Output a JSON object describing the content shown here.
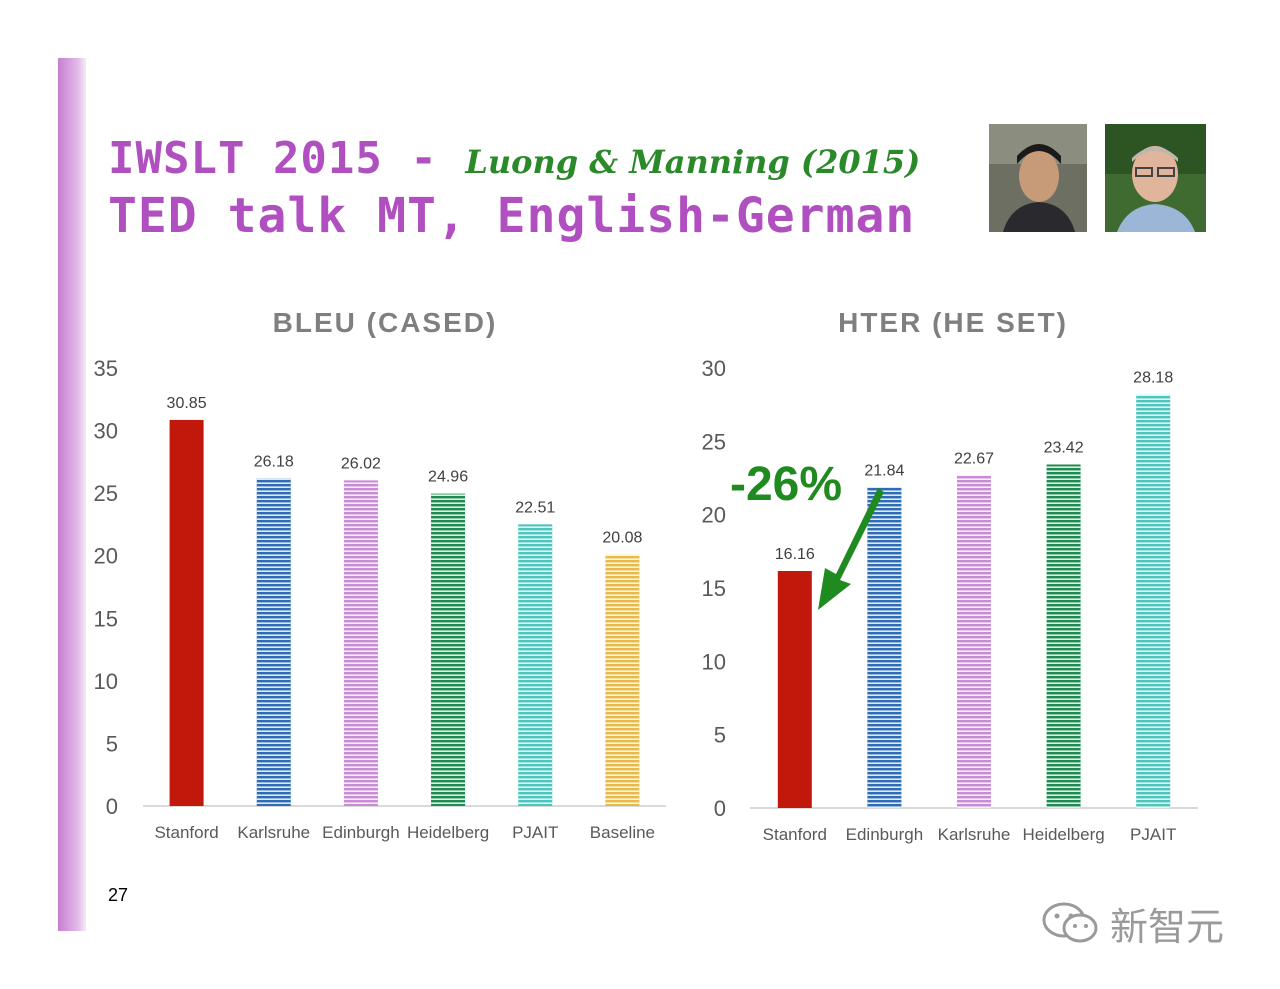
{
  "slide": {
    "title_line1": "IWSLT 2015 - ",
    "title_authors": "Luong & Manning (2015)",
    "title_line2": "TED talk MT, English-German",
    "page_number": "27",
    "watermark": "新智元",
    "annotation": {
      "text": "-26%",
      "color": "#1f8a1f"
    },
    "colors": {
      "title": "#b04fbf",
      "authors": "#2a8a2a",
      "accent_bar": "#c77fd0"
    }
  },
  "chart_data": [
    {
      "type": "bar",
      "title": "BLEU (CASED)",
      "categories": [
        "Stanford",
        "Karlsruhe",
        "Edinburgh",
        "Heidelberg",
        "PJAIT",
        "Baseline"
      ],
      "values": [
        30.85,
        26.18,
        26.02,
        24.96,
        22.51,
        20.08
      ],
      "value_labels": [
        "30.85",
        "26.18",
        "26.02",
        "24.96",
        "22.51",
        "20.08"
      ],
      "colors": [
        "#c0190b",
        "#2e6db5",
        "#c98ad6",
        "#1f8a52",
        "#4cc5bd",
        "#eab94a"
      ],
      "patterned": [
        false,
        true,
        true,
        true,
        true,
        true
      ],
      "ylim": [
        0,
        35
      ],
      "yticks": [
        "0",
        "5",
        "10",
        "15",
        "20",
        "25",
        "30",
        "35"
      ],
      "grid": false
    },
    {
      "type": "bar",
      "title": "HTER (HE SET)",
      "categories": [
        "Stanford",
        "Edinburgh",
        "Karlsruhe",
        "Heidelberg",
        "PJAIT"
      ],
      "values": [
        16.16,
        21.84,
        22.67,
        23.42,
        28.18
      ],
      "value_labels": [
        "16.16",
        "21.84",
        "22.67",
        "23.42",
        "28.18"
      ],
      "colors": [
        "#c0190b",
        "#2e6db5",
        "#c98ad6",
        "#1f8a52",
        "#4cc5bd"
      ],
      "patterned": [
        false,
        true,
        true,
        true,
        true
      ],
      "ylim": [
        0,
        30
      ],
      "yticks": [
        "0",
        "5",
        "10",
        "15",
        "20",
        "25",
        "30"
      ],
      "grid": false
    }
  ]
}
